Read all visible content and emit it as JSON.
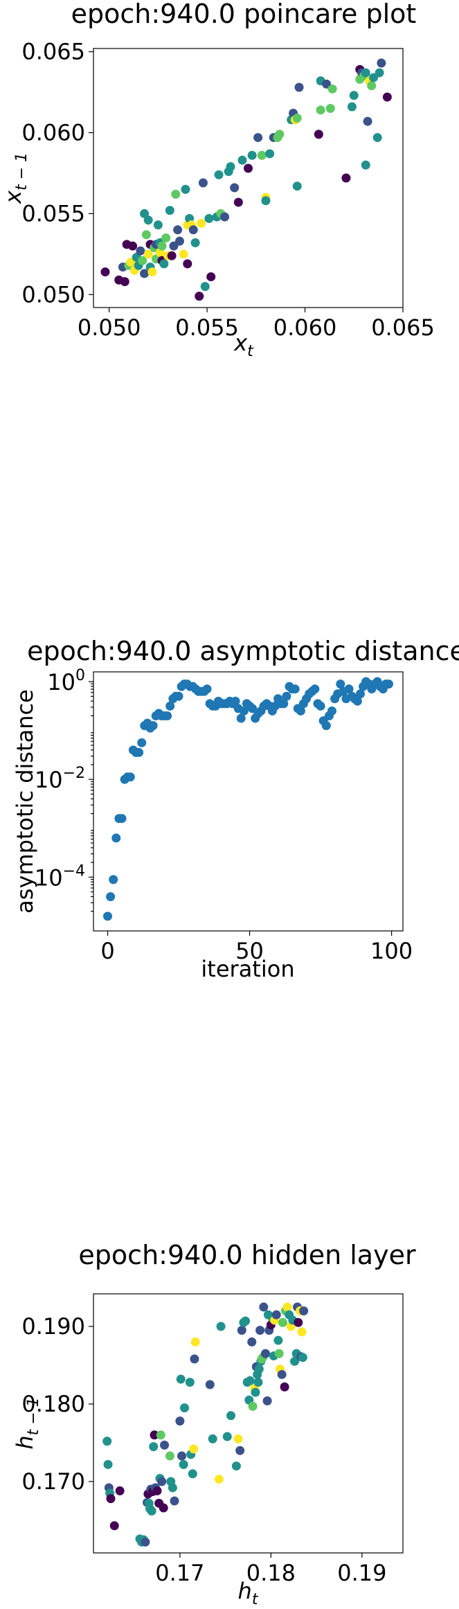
{
  "colors": {
    "viridis": [
      "#440154",
      "#3b528b",
      "#21918c",
      "#5ec962",
      "#fde725"
    ],
    "scatter_blue": "#1f77b4"
  },
  "chart_data": [
    {
      "type": "scatter",
      "title": "epoch:940.0 poincare plot",
      "xlabel_base": "x",
      "xlabel_sub": "t",
      "ylabel_base": "x",
      "ylabel_sub": "t − 1",
      "xlim": [
        0.0492,
        0.065
      ],
      "ylim": [
        0.0492,
        0.0652
      ],
      "xticks": [
        0.05,
        0.055,
        0.06,
        0.065
      ],
      "xtick_labels": [
        "0.050",
        "0.055",
        "0.060",
        "0.065"
      ],
      "yticks": [
        0.05,
        0.055,
        0.06,
        0.065
      ],
      "ytick_labels": [
        "0.050",
        "0.055",
        "0.060",
        "0.065"
      ],
      "grid": false,
      "colormap": "viridis",
      "points": [
        [
          0.0498,
          0.0514,
          0.0
        ],
        [
          0.0505,
          0.0509,
          0.1
        ],
        [
          0.0508,
          0.0508,
          0.0
        ],
        [
          0.0507,
          0.0517,
          0.2
        ],
        [
          0.0509,
          0.0531,
          0.0
        ],
        [
          0.051,
          0.0518,
          0.8
        ],
        [
          0.0511,
          0.052,
          1.0
        ],
        [
          0.0512,
          0.053,
          0.0
        ],
        [
          0.0513,
          0.0515,
          0.9
        ],
        [
          0.0514,
          0.0523,
          0.4
        ],
        [
          0.0515,
          0.0518,
          0.6
        ],
        [
          0.0516,
          0.0527,
          0.2
        ],
        [
          0.0517,
          0.0521,
          0.8
        ],
        [
          0.0518,
          0.055,
          0.5
        ],
        [
          0.0518,
          0.0513,
          0.3
        ],
        [
          0.0519,
          0.0537,
          0.7
        ],
        [
          0.052,
          0.0546,
          0.4
        ],
        [
          0.052,
          0.0525,
          0.9
        ],
        [
          0.0521,
          0.0517,
          0.6
        ],
        [
          0.0521,
          0.0531,
          0.1
        ],
        [
          0.0522,
          0.0514,
          1.0
        ],
        [
          0.0523,
          0.0529,
          0.8
        ],
        [
          0.0524,
          0.0522,
          0.7
        ],
        [
          0.0524,
          0.0531,
          0.3
        ],
        [
          0.0525,
          0.0543,
          0.5
        ],
        [
          0.0526,
          0.0526,
          0.9
        ],
        [
          0.0526,
          0.0532,
          0.6
        ],
        [
          0.0527,
          0.0521,
          0.0
        ],
        [
          0.0527,
          0.053,
          0.8
        ],
        [
          0.0528,
          0.0519,
          0.4
        ],
        [
          0.0529,
          0.0535,
          0.7
        ],
        [
          0.053,
          0.0524,
          1.0
        ],
        [
          0.0531,
          0.0552,
          0.6
        ],
        [
          0.0532,
          0.0524,
          0.1
        ],
        [
          0.0533,
          0.053,
          0.3
        ],
        [
          0.0534,
          0.0562,
          0.7
        ],
        [
          0.0535,
          0.054,
          0.3
        ],
        [
          0.0536,
          0.0533,
          0.2
        ],
        [
          0.0538,
          0.0525,
          1.0
        ],
        [
          0.0539,
          0.0565,
          0.5
        ],
        [
          0.054,
          0.0543,
          0.9
        ],
        [
          0.054,
          0.0519,
          0.1
        ],
        [
          0.0541,
          0.0547,
          0.5
        ],
        [
          0.0542,
          0.0543,
          1.0
        ],
        [
          0.0543,
          0.054,
          0.3
        ],
        [
          0.0544,
          0.0532,
          0.4
        ],
        [
          0.0546,
          0.0499,
          0.0
        ],
        [
          0.0547,
          0.0544,
          0.9
        ],
        [
          0.0548,
          0.0569,
          0.3
        ],
        [
          0.0549,
          0.0505,
          0.5
        ],
        [
          0.0551,
          0.0547,
          0.5
        ],
        [
          0.0552,
          0.0511,
          0.0
        ],
        [
          0.0555,
          0.0548,
          0.4
        ],
        [
          0.0556,
          0.0574,
          0.4
        ],
        [
          0.0557,
          0.055,
          0.8
        ],
        [
          0.0559,
          0.0548,
          0.2
        ],
        [
          0.0561,
          0.0576,
          0.6
        ],
        [
          0.0562,
          0.0579,
          0.5
        ],
        [
          0.0564,
          0.0566,
          0.3
        ],
        [
          0.0566,
          0.0557,
          0.1
        ],
        [
          0.0568,
          0.0583,
          0.6
        ],
        [
          0.0571,
          0.0578,
          0.1
        ],
        [
          0.0573,
          0.0586,
          0.4
        ],
        [
          0.0576,
          0.0597,
          0.3
        ],
        [
          0.0578,
          0.0586,
          0.7
        ],
        [
          0.058,
          0.056,
          1.0
        ],
        [
          0.058,
          0.0558,
          0.5
        ],
        [
          0.0582,
          0.0587,
          0.4
        ],
        [
          0.0584,
          0.0597,
          0.2
        ],
        [
          0.0586,
          0.0597,
          0.8
        ],
        [
          0.0587,
          0.0599,
          0.7
        ],
        [
          0.0593,
          0.0608,
          0.5
        ],
        [
          0.0594,
          0.0612,
          0.2
        ],
        [
          0.0595,
          0.0608,
          0.9
        ],
        [
          0.0596,
          0.0609,
          0.7
        ],
        [
          0.0596,
          0.0567,
          0.4
        ],
        [
          0.0597,
          0.0628,
          0.3
        ],
        [
          0.0607,
          0.0599,
          0.1
        ],
        [
          0.0608,
          0.0614,
          0.7
        ],
        [
          0.0608,
          0.0632,
          0.6
        ],
        [
          0.0611,
          0.063,
          0.3
        ],
        [
          0.0613,
          0.0615,
          0.8
        ],
        [
          0.0614,
          0.0627,
          0.8
        ],
        [
          0.0621,
          0.0572,
          0.1
        ],
        [
          0.0624,
          0.0616,
          0.4
        ],
        [
          0.0625,
          0.0623,
          0.6
        ],
        [
          0.0628,
          0.0633,
          0.7
        ],
        [
          0.0628,
          0.0639,
          0.1
        ],
        [
          0.0629,
          0.0637,
          0.3
        ],
        [
          0.063,
          0.0635,
          0.8
        ],
        [
          0.0631,
          0.0637,
          0.5
        ],
        [
          0.0631,
          0.058,
          0.6
        ],
        [
          0.0632,
          0.0607,
          0.3
        ],
        [
          0.0633,
          0.0632,
          0.9
        ],
        [
          0.0634,
          0.0629,
          0.7
        ],
        [
          0.0635,
          0.0634,
          0.4
        ],
        [
          0.0637,
          0.0597,
          0.4
        ],
        [
          0.0638,
          0.0637,
          0.5
        ],
        [
          0.0639,
          0.0643,
          0.2
        ],
        [
          0.0642,
          0.0622,
          0.1
        ]
      ]
    },
    {
      "type": "scatter",
      "title": "epoch:940.0 asymptotic distance",
      "xlabel": "iteration",
      "ylabel": "asymptotic distance",
      "yscale": "log",
      "xlim": [
        -5,
        104
      ],
      "ylim_log10": [
        -5.1,
        0.2
      ],
      "xticks": [
        0,
        50,
        100
      ],
      "xtick_labels": [
        "0",
        "50",
        "100"
      ],
      "ytick_exponents": [
        -4,
        -2,
        0
      ],
      "ytick_labels": [
        "10",
        "10",
        "10"
      ],
      "ytick_label_exponents": [
        "−4",
        "−2",
        "0"
      ],
      "grid": false,
      "series": [
        {
          "x": [
            0,
            1,
            2,
            3,
            4,
            5,
            6,
            7,
            8,
            9,
            10,
            11,
            12,
            13,
            14,
            15,
            16,
            17,
            18,
            19,
            20,
            21,
            22,
            23,
            24,
            25,
            26,
            27,
            28,
            29,
            30,
            31,
            32,
            33,
            34,
            35,
            36,
            37,
            38,
            39,
            40,
            41,
            42,
            43,
            44,
            45,
            46,
            47,
            48,
            49,
            50,
            51,
            52,
            53,
            54,
            55,
            56,
            57,
            58,
            59,
            60,
            61,
            62,
            63,
            64,
            65,
            66,
            67,
            68,
            69,
            70,
            71,
            72,
            73,
            74,
            75,
            76,
            77,
            78,
            79,
            80,
            81,
            82,
            83,
            84,
            85,
            86,
            87,
            88,
            89,
            90,
            91,
            92,
            93,
            94,
            95,
            96,
            97,
            98,
            99
          ],
          "log10_y": [
            -4.8,
            -4.4,
            -4.05,
            -3.2,
            -2.8,
            -2.8,
            -2.0,
            -1.95,
            -1.95,
            -1.4,
            -1.45,
            -1.45,
            -1.25,
            -0.9,
            -0.85,
            -0.95,
            -0.9,
            -0.7,
            -0.65,
            -0.7,
            -0.7,
            -0.7,
            -0.5,
            -0.35,
            -0.3,
            -0.3,
            -0.1,
            -0.05,
            -0.05,
            -0.1,
            -0.1,
            -0.15,
            -0.2,
            -0.2,
            -0.2,
            -0.15,
            -0.45,
            -0.5,
            -0.5,
            -0.4,
            -0.45,
            -0.45,
            -0.45,
            -0.4,
            -0.45,
            -0.4,
            -0.55,
            -0.75,
            -0.6,
            -0.45,
            -0.5,
            -0.55,
            -0.75,
            -0.65,
            -0.6,
            -0.5,
            -0.45,
            -0.5,
            -0.6,
            -0.5,
            -0.35,
            -0.45,
            -0.45,
            -0.3,
            -0.1,
            -0.15,
            -0.15,
            -0.55,
            -0.6,
            -0.45,
            -0.35,
            -0.25,
            -0.2,
            -0.15,
            -0.45,
            -0.5,
            -0.8,
            -0.9,
            -0.7,
            -0.6,
            -0.35,
            -0.25,
            -0.05,
            -0.2,
            -0.35,
            -0.15,
            -0.3,
            -0.35,
            -0.4,
            -0.25,
            -0.1,
            0.0,
            -0.05,
            -0.15,
            -0.05,
            0.0,
            -0.1,
            -0.15,
            -0.05,
            -0.05
          ]
        }
      ]
    },
    {
      "type": "scatter",
      "title": "epoch:940.0 hidden layer",
      "xlabel_base": "h",
      "xlabel_sub": "t",
      "ylabel_base": "h",
      "ylabel_sub": "t − 1",
      "xlim": [
        0.1605,
        0.1945
      ],
      "ylim": [
        0.1608,
        0.1942
      ],
      "xticks": [
        0.17,
        0.18,
        0.19
      ],
      "xtick_labels": [
        "0.17",
        "0.18",
        "0.19"
      ],
      "yticks": [
        0.17,
        0.18,
        0.19
      ],
      "ytick_labels": [
        "0.170",
        "0.180",
        "0.190"
      ],
      "grid": false,
      "colormap": "viridis",
      "points": [
        [
          0.162,
          0.1752,
          0.5
        ],
        [
          0.1621,
          0.1722,
          0.4
        ],
        [
          0.1622,
          0.1692,
          0.3
        ],
        [
          0.1623,
          0.1685,
          0.5
        ],
        [
          0.1624,
          0.1678,
          0.1
        ],
        [
          0.1628,
          0.1643,
          0.0
        ],
        [
          0.1634,
          0.1688,
          0.1
        ],
        [
          0.1656,
          0.1626,
          0.6
        ],
        [
          0.1658,
          0.1622,
          0.4
        ],
        [
          0.166,
          0.1625,
          0.5
        ],
        [
          0.1662,
          0.1622,
          0.3
        ],
        [
          0.1664,
          0.1673,
          0.3
        ],
        [
          0.1665,
          0.1684,
          0.0
        ],
        [
          0.1666,
          0.1672,
          0.5
        ],
        [
          0.1667,
          0.1665,
          0.4
        ],
        [
          0.1668,
          0.169,
          0.2
        ],
        [
          0.1669,
          0.1662,
          0.6
        ],
        [
          0.167,
          0.1687,
          0.1
        ],
        [
          0.1671,
          0.1745,
          0.6
        ],
        [
          0.1672,
          0.176,
          0.0
        ],
        [
          0.1673,
          0.1692,
          0.2
        ],
        [
          0.1675,
          0.1688,
          0.0
        ],
        [
          0.1677,
          0.1672,
          0.1
        ],
        [
          0.1678,
          0.1704,
          0.5
        ],
        [
          0.1679,
          0.176,
          0.8
        ],
        [
          0.168,
          0.17,
          0.3
        ],
        [
          0.1682,
          0.1666,
          0.1
        ],
        [
          0.1683,
          0.1747,
          0.3
        ],
        [
          0.1689,
          0.1733,
          0.7
        ],
        [
          0.169,
          0.17,
          0.5
        ],
        [
          0.1692,
          0.1692,
          0.4
        ],
        [
          0.1694,
          0.1675,
          0.3
        ],
        [
          0.17,
          0.1778,
          0.3
        ],
        [
          0.1701,
          0.1832,
          0.6
        ],
        [
          0.1702,
          0.1733,
          0.2
        ],
        [
          0.1704,
          0.1722,
          0.5
        ],
        [
          0.1705,
          0.1795,
          0.4
        ],
        [
          0.1711,
          0.1828,
          0.6
        ],
        [
          0.1712,
          0.1735,
          0.6
        ],
        [
          0.1714,
          0.171,
          0.6
        ],
        [
          0.1715,
          0.1742,
          0.9
        ],
        [
          0.1716,
          0.1858,
          0.2
        ],
        [
          0.1717,
          0.188,
          1.0
        ],
        [
          0.1733,
          0.1825,
          0.3
        ],
        [
          0.1736,
          0.1755,
          0.5
        ],
        [
          0.1743,
          0.1703,
          0.9
        ],
        [
          0.1745,
          0.19,
          0.4
        ],
        [
          0.1752,
          0.1758,
          0.4
        ],
        [
          0.1756,
          0.1785,
          0.4
        ],
        [
          0.1762,
          0.172,
          0.6
        ],
        [
          0.1764,
          0.1755,
          1.0
        ],
        [
          0.1766,
          0.174,
          0.3
        ],
        [
          0.1768,
          0.1895,
          0.2
        ],
        [
          0.177,
          0.1905,
          0.6
        ],
        [
          0.1772,
          0.1907,
          0.4
        ],
        [
          0.1774,
          0.1828,
          0.6
        ],
        [
          0.1776,
          0.1805,
          0.4
        ],
        [
          0.1777,
          0.183,
          0.5
        ],
        [
          0.1779,
          0.188,
          0.2
        ],
        [
          0.178,
          0.1797,
          0.7
        ],
        [
          0.1782,
          0.182,
          1.0
        ],
        [
          0.1783,
          0.1815,
          0.6
        ],
        [
          0.1784,
          0.1848,
          0.3
        ],
        [
          0.1785,
          0.1838,
          0.5
        ],
        [
          0.1786,
          0.1828,
          0.4
        ],
        [
          0.1787,
          0.1845,
          0.6
        ],
        [
          0.1788,
          0.1895,
          0.3
        ],
        [
          0.1789,
          0.1855,
          0.6
        ],
        [
          0.179,
          0.1858,
          0.8
        ],
        [
          0.1791,
          0.186,
          0.7
        ],
        [
          0.1792,
          0.1925,
          0.2
        ],
        [
          0.1794,
          0.1865,
          0.2
        ],
        [
          0.1796,
          0.1804,
          0.3
        ],
        [
          0.1797,
          0.1915,
          0.4
        ],
        [
          0.1798,
          0.1895,
          0.2
        ],
        [
          0.18,
          0.1902,
          0.1
        ],
        [
          0.1802,
          0.191,
          0.6
        ],
        [
          0.1803,
          0.1862,
          0.4
        ],
        [
          0.1804,
          0.1908,
          0.9
        ],
        [
          0.1806,
          0.1915,
          0.3
        ],
        [
          0.1808,
          0.1882,
          0.6
        ],
        [
          0.1809,
          0.1865,
          0.7
        ],
        [
          0.181,
          0.1845,
          0.9
        ],
        [
          0.1812,
          0.1838,
          0.3
        ],
        [
          0.1813,
          0.1905,
          0.8
        ],
        [
          0.1815,
          0.1822,
          0.1
        ],
        [
          0.1816,
          0.192,
          0.8
        ],
        [
          0.1818,
          0.1925,
          1.0
        ],
        [
          0.182,
          0.1915,
          0.5
        ],
        [
          0.1822,
          0.19,
          1.0
        ],
        [
          0.1824,
          0.1908,
          0.6
        ],
        [
          0.1826,
          0.1855,
          0.6
        ],
        [
          0.1828,
          0.1865,
          0.4
        ],
        [
          0.1829,
          0.1925,
          0.2
        ],
        [
          0.183,
          0.1905,
          0.1
        ],
        [
          0.1832,
          0.192,
          0.9
        ],
        [
          0.1833,
          0.1861,
          0.3
        ],
        [
          0.1834,
          0.1893,
          0.9
        ],
        [
          0.1835,
          0.186,
          0.5
        ],
        [
          0.1836,
          0.192,
          0.3
        ]
      ]
    }
  ]
}
